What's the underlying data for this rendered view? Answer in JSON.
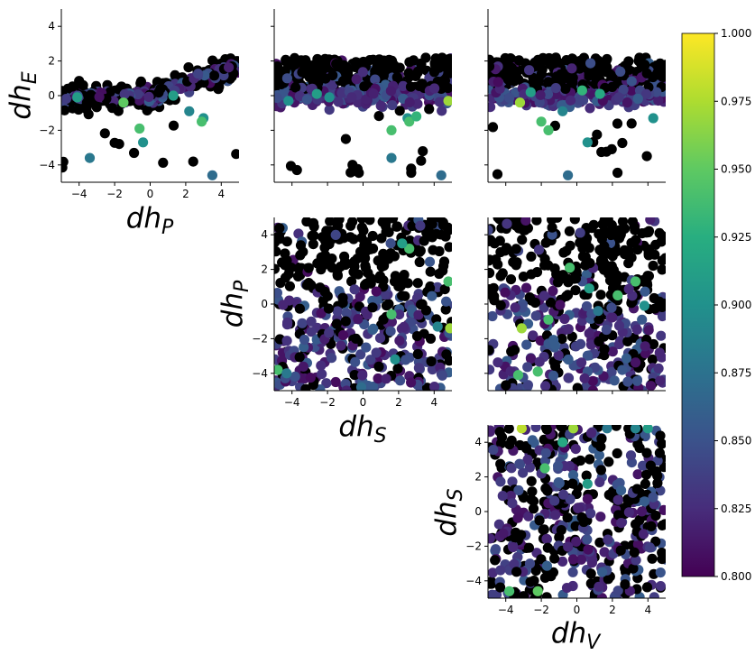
{
  "chart_data": {
    "type": "scatter",
    "layout": "corner-pairplot",
    "colormap": "viridis",
    "marker_color_missing": "#000000",
    "colorbar": {
      "range": [
        0.8,
        1.0
      ],
      "ticks": [
        "0.800",
        "0.825",
        "0.850",
        "0.875",
        "0.900",
        "0.925",
        "0.950",
        "0.975",
        "1.000"
      ]
    },
    "axis_limits": [
      -5,
      5
    ],
    "tick_labels": [
      "−4",
      "−2",
      "0",
      "2",
      "4"
    ],
    "titles": {
      "dhP_x": "dh_P",
      "dhE_y": "dh_E",
      "dhS_x": "dh_S",
      "dhP_y": "dh_P",
      "dhV_x": "dh_V",
      "dhS_y": "dh_S"
    },
    "panels": [
      {
        "id": "dhP-vs-dhE",
        "x": "dhP",
        "y": "dhE",
        "pattern": "trend",
        "seed": 11,
        "highlights": [
          [
            -0.6,
            -1.9,
            0.94
          ],
          [
            -0.4,
            -2.7,
            0.9
          ],
          [
            -3.4,
            -3.6,
            0.88
          ],
          [
            3.5,
            -4.6,
            0.87
          ],
          [
            3.0,
            -1.3,
            0.9
          ],
          [
            2.9,
            -1.5,
            0.94
          ],
          [
            2.2,
            -0.9,
            0.89
          ],
          [
            1.3,
            0.0,
            0.91
          ],
          [
            -4.1,
            -0.1,
            0.91
          ],
          [
            -1.5,
            -0.4,
            0.95
          ]
        ]
      },
      {
        "id": "dhS-vs-dhE",
        "x": "dhS",
        "y": "dhE",
        "pattern": "band",
        "seed": 23,
        "highlights": [
          [
            4.8,
            -0.3,
            0.97
          ],
          [
            -1.9,
            -0.1,
            0.9
          ],
          [
            1.6,
            -3.6,
            0.88
          ],
          [
            4.4,
            -4.6,
            0.87
          ],
          [
            2.5,
            -1.3,
            0.9
          ],
          [
            2.6,
            -1.5,
            0.94
          ],
          [
            1.6,
            -2.0,
            0.94
          ],
          [
            3.0,
            -1.2,
            0.93
          ],
          [
            -4.2,
            -0.3,
            0.9
          ],
          [
            -2.6,
            0.1,
            0.91
          ]
        ]
      },
      {
        "id": "dhV-vs-dhE",
        "x": "dhV",
        "y": "dhE",
        "pattern": "band",
        "seed": 37,
        "highlights": [
          [
            -3.2,
            -0.4,
            0.97
          ],
          [
            -2.0,
            -1.5,
            0.94
          ],
          [
            -1.6,
            -2.0,
            0.94
          ],
          [
            -0.5,
            -4.6,
            0.87
          ],
          [
            0.6,
            -2.7,
            0.9
          ],
          [
            -0.8,
            -0.9,
            0.89
          ],
          [
            4.3,
            -1.3,
            0.9
          ],
          [
            -2.6,
            0.2,
            0.91
          ],
          [
            1.3,
            0.1,
            0.92
          ],
          [
            0.3,
            0.3,
            0.93
          ]
        ]
      },
      {
        "id": "dhS-vs-dhP",
        "x": "dhS",
        "y": "dhP",
        "pattern": "uniform-p",
        "seed": 51,
        "highlights": [
          [
            4.9,
            -1.4,
            0.97
          ],
          [
            4.8,
            1.3,
            0.94
          ],
          [
            -4.8,
            -3.8,
            0.94
          ],
          [
            2.6,
            3.2,
            0.94
          ],
          [
            2.2,
            3.5,
            0.91
          ],
          [
            1.6,
            -0.6,
            0.94
          ],
          [
            4.2,
            -1.3,
            0.89
          ],
          [
            -4.3,
            -4.0,
            0.88
          ],
          [
            1.8,
            -3.2,
            0.9
          ],
          [
            -0.1,
            -4.8,
            0.87
          ]
        ]
      },
      {
        "id": "dhV-vs-dhP",
        "x": "dhV",
        "y": "dhP",
        "pattern": "uniform-p",
        "seed": 67,
        "highlights": [
          [
            -3.1,
            -1.4,
            0.97
          ],
          [
            -3.3,
            -4.1,
            0.94
          ],
          [
            -2.2,
            -3.9,
            0.94
          ],
          [
            2.3,
            0.5,
            0.94
          ],
          [
            3.3,
            1.3,
            0.94
          ],
          [
            -1.6,
            -0.9,
            0.94
          ],
          [
            -0.4,
            2.1,
            0.94
          ],
          [
            0.7,
            0.9,
            0.91
          ],
          [
            1.2,
            -0.4,
            0.88
          ],
          [
            3.8,
            -0.1,
            0.9
          ]
        ]
      },
      {
        "id": "dhV-vs-dhS",
        "x": "dhV",
        "y": "dhS",
        "pattern": "uniform-s",
        "seed": 83,
        "highlights": [
          [
            -3.1,
            4.8,
            0.98
          ],
          [
            -0.2,
            4.8,
            0.97
          ],
          [
            -1.8,
            2.5,
            0.94
          ],
          [
            -3.8,
            -4.6,
            0.94
          ],
          [
            -2.2,
            -4.6,
            0.95
          ],
          [
            3.3,
            4.8,
            0.89
          ],
          [
            1.7,
            4.8,
            0.88
          ],
          [
            4.0,
            4.8,
            0.91
          ],
          [
            0.6,
            1.6,
            0.91
          ],
          [
            -0.8,
            4.0,
            0.92
          ]
        ]
      }
    ]
  }
}
